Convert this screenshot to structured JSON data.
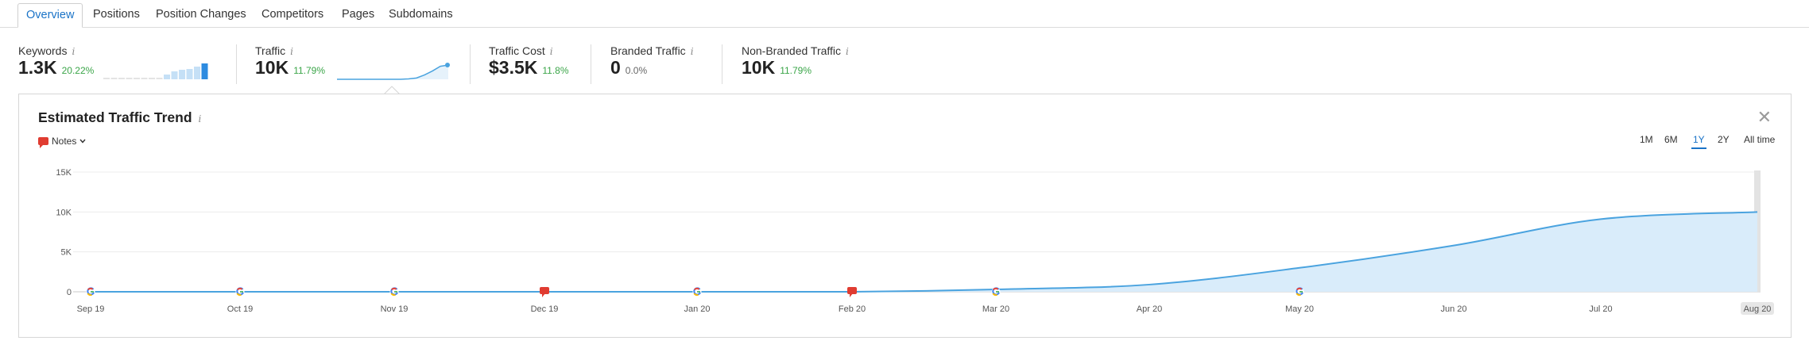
{
  "tabs": [
    "Overview",
    "Positions",
    "Position Changes",
    "Competitors",
    "Pages",
    "Subdomains"
  ],
  "kpis": [
    {
      "label": "Keywords",
      "value": "1.3K",
      "change": "20.22%"
    },
    {
      "label": "Traffic",
      "value": "10K",
      "change": "11.79%"
    },
    {
      "label": "Traffic Cost",
      "value": "$3.5K",
      "change": "11.8%"
    },
    {
      "label": "Branded Traffic",
      "value": "0",
      "change": "0.0%"
    },
    {
      "label": "Non-Branded Traffic",
      "value": "10K",
      "change": "11.79%"
    }
  ],
  "info_glyph": "i",
  "panel": {
    "title": "Estimated Traffic Trend",
    "close": "✕",
    "notes_label": "Notes",
    "ranges": [
      "1M",
      "6M",
      "1Y",
      "2Y",
      "All time"
    ],
    "active_range": "1Y"
  },
  "colors": {
    "accent": "#1a73c7",
    "positive": "#3aa548",
    "line": "#4aa3df",
    "area": "#d9ecfa",
    "note": "#e03c31"
  },
  "chart_data": {
    "type": "area",
    "title": "Estimated Traffic Trend",
    "x": [
      "Sep 19",
      "Oct 19",
      "Nov 19",
      "Dec 19",
      "Jan 20",
      "Feb 20",
      "Mar 20",
      "Apr 20",
      "May 20",
      "Jun 20",
      "Jul 20",
      "Aug 20"
    ],
    "series": [
      {
        "values": [
          0,
          0,
          0,
          0,
          0,
          0,
          300,
          900,
          3000,
          5800,
          9100,
          10000
        ]
      }
    ],
    "yticks": [
      "0",
      "5K",
      "10K",
      "15K"
    ],
    "ylim": [
      0,
      15000
    ],
    "grid": true,
    "markers": [
      {
        "x": "Sep 19",
        "kind": "google"
      },
      {
        "x": "Oct 19",
        "kind": "google"
      },
      {
        "x": "Nov 19",
        "kind": "google"
      },
      {
        "x": "Dec 19",
        "kind": "note"
      },
      {
        "x": "Jan 20",
        "kind": "google"
      },
      {
        "x": "Feb 20",
        "kind": "note"
      },
      {
        "x": "Mar 20",
        "kind": "google"
      },
      {
        "x": "May 20",
        "kind": "google"
      }
    ],
    "highlighted_x": "Aug 20"
  },
  "sparklines": {
    "keywords": [
      0.1,
      0.1,
      0.1,
      0.1,
      0.1,
      0.1,
      0.1,
      0.1,
      0.3,
      0.5,
      0.6,
      0.65,
      0.8,
      1.0
    ],
    "traffic": [
      0,
      0,
      0,
      0,
      0,
      0,
      0,
      0,
      0,
      0.03,
      0.09,
      0.3,
      0.58,
      0.91,
      1.0
    ]
  }
}
